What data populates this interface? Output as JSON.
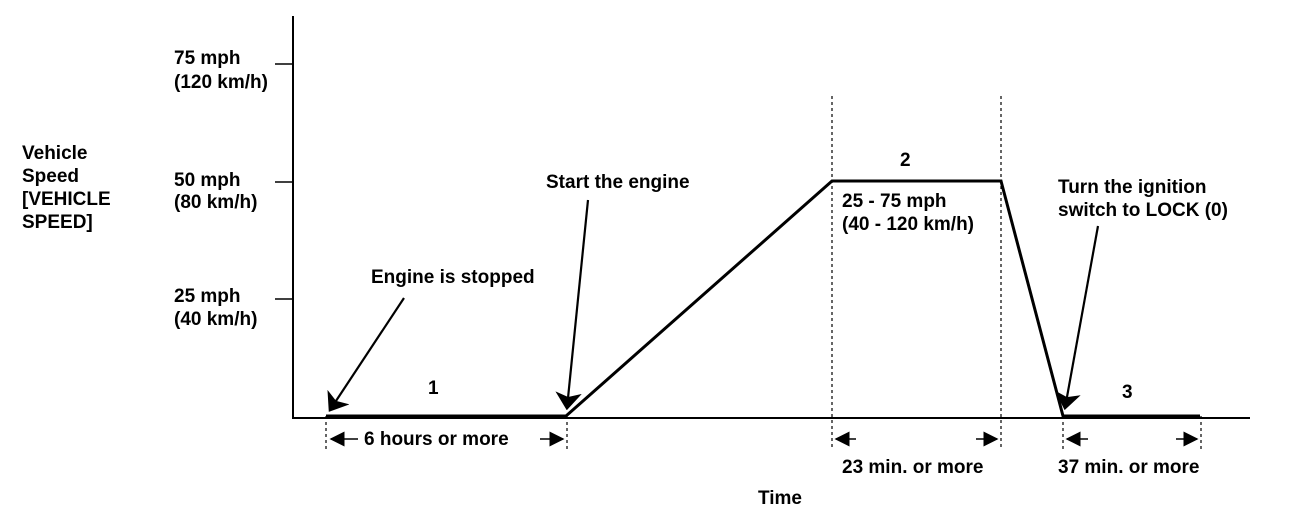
{
  "ylabel": [
    "Vehicle",
    "Speed",
    "[VEHICLE",
    "SPEED]"
  ],
  "xlabel": "Time",
  "y_ticks": [
    {
      "line1": "75 mph",
      "line2": "(120 km/h)"
    },
    {
      "line1": "50 mph",
      "line2": "(80 km/h)"
    },
    {
      "line1": "25 mph",
      "line2": "(40 km/h)"
    }
  ],
  "phases": {
    "p1": "1",
    "p2": "2",
    "p3": "3"
  },
  "annotations": {
    "engine_stopped": "Engine is stopped",
    "start_engine": "Start the engine",
    "speed_range_1": "25 - 75 mph",
    "speed_range_2": "(40 - 120 km/h)",
    "ignition_1": "Turn the ignition",
    "ignition_2": "switch to LOCK (0)"
  },
  "durations": {
    "d1": "6 hours or more",
    "d2": "23 min. or more",
    "d3": "37 min. or more"
  },
  "colors": {
    "line": "#000000",
    "background": "#ffffff"
  }
}
